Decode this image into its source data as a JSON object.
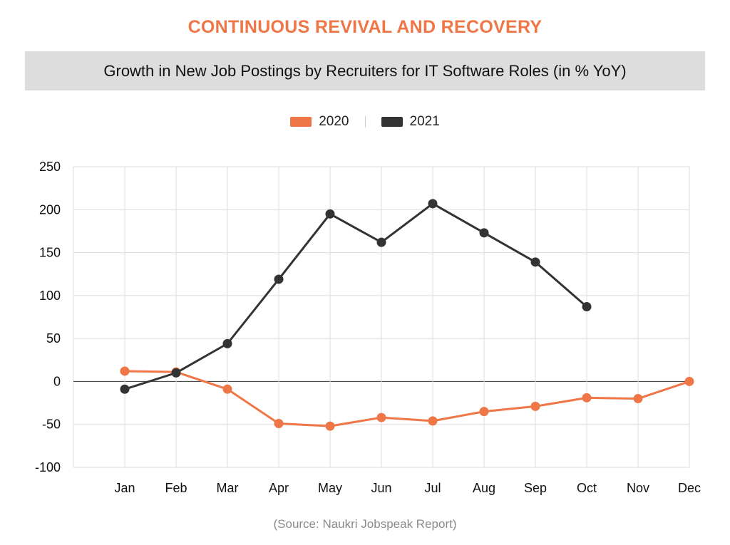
{
  "headline": "CONTINUOUS REVIVAL AND RECOVERY",
  "accent_color": "#ef7646",
  "source_note": "(Source: Naukri Jobspeak Report)",
  "chart_data": {
    "type": "line",
    "title": "Growth in New Job Postings by Recruiters for IT Software Roles (in % YoY)",
    "xlabel": "",
    "ylabel": "",
    "categories": [
      "Jan",
      "Feb",
      "Mar",
      "Apr",
      "May",
      "Jun",
      "Jul",
      "Aug",
      "Sep",
      "Oct",
      "Nov",
      "Dec"
    ],
    "ylim": [
      -100,
      250
    ],
    "yticks": [
      250,
      200,
      150,
      100,
      50,
      0,
      -50,
      -100
    ],
    "grid": true,
    "legend_position": "top-center",
    "series": [
      {
        "name": "2020",
        "color": "#ef7646",
        "values": [
          12,
          11,
          -9,
          -49,
          -52,
          -42,
          -46,
          -35,
          -29,
          -19,
          -20,
          0
        ]
      },
      {
        "name": "2021",
        "color": "#333333",
        "values": [
          -9,
          10,
          44,
          119,
          195,
          162,
          207,
          173,
          139,
          87,
          null,
          null
        ]
      }
    ]
  }
}
